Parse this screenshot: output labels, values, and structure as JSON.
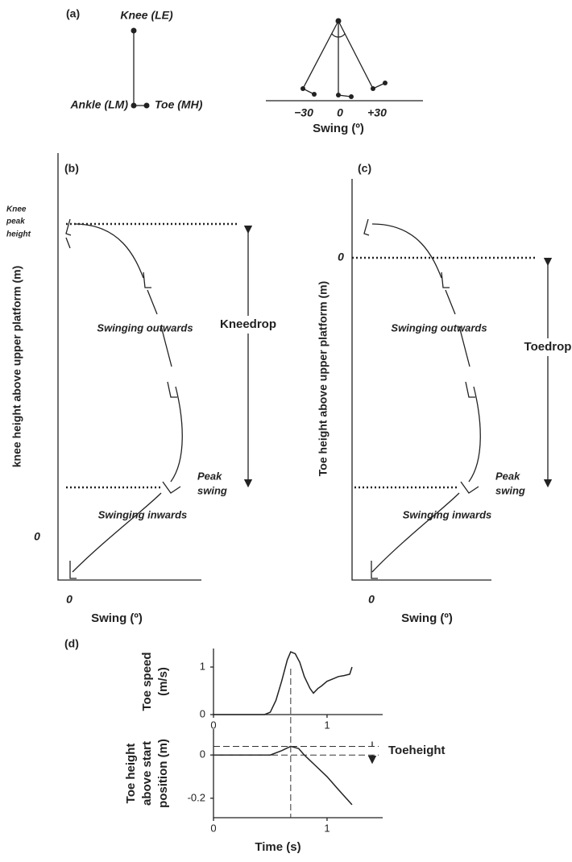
{
  "panel_a": {
    "label": "(a)",
    "knee": "Knee (LE)",
    "ankle": "Ankle (LM)",
    "toe": "Toe (MH)",
    "swing_ticks": [
      "−30",
      "0",
      "+30"
    ],
    "swing_label": "Swing (º)"
  },
  "panel_b": {
    "label": "(b)",
    "ylabel": "knee height above upper platform (m)",
    "yzero": "0",
    "xzero": "0",
    "xlabel": "Swing (º)",
    "peak_height": [
      "Knee",
      "peak",
      "height"
    ],
    "outwards": "Swinging outwards",
    "inwards": "Swinging inwards",
    "peak_swing": [
      "Peak",
      "swing"
    ],
    "drop": "Kneedrop"
  },
  "panel_c": {
    "label": "(c)",
    "ylabel": "Toe height above upper platform (m)",
    "yzero": "0",
    "xzero": "0",
    "xlabel": "Swing (º)",
    "outwards": "Swinging outwards",
    "inwards": "Swinging inwards",
    "peak_swing": [
      "Peak",
      "swing"
    ],
    "drop": "Toedrop"
  },
  "panel_d": {
    "label": "(d)",
    "annotation": "Toeheight"
  },
  "chart_data": [
    {
      "type": "line",
      "ylabel": [
        "Toe speed",
        "(m/s)"
      ],
      "color": "#222222",
      "x": [
        0,
        0.2,
        0.45,
        0.5,
        0.55,
        0.6,
        0.65,
        0.68,
        0.72,
        0.76,
        0.8,
        0.85,
        0.88,
        0.92,
        0.95,
        1.0,
        1.05,
        1.1,
        1.15,
        1.2,
        1.22
      ],
      "values": [
        0,
        0,
        0,
        0.05,
        0.3,
        0.7,
        1.15,
        1.32,
        1.28,
        1.1,
        0.8,
        0.55,
        0.45,
        0.55,
        0.6,
        0.7,
        0.75,
        0.8,
        0.82,
        0.85,
        1.0
      ],
      "xlim": [
        0,
        1.49
      ],
      "ylim": [
        0,
        1.39
      ],
      "xticks": [
        0,
        1
      ],
      "yticks": [
        0,
        1
      ]
    },
    {
      "type": "line",
      "ylabel": [
        "Toe height",
        "above start",
        "position (m)"
      ],
      "xlabel": "Time (s)",
      "color": "#222222",
      "x": [
        0,
        0.5,
        0.6,
        0.68,
        0.75,
        0.8,
        0.9,
        1.0,
        1.1,
        1.22
      ],
      "values": [
        0,
        0,
        0.02,
        0.04,
        0.03,
        0,
        -0.05,
        -0.1,
        -0.16,
        -0.23
      ],
      "xlim": [
        0,
        1.49
      ],
      "ylim": [
        -0.29,
        0.12
      ],
      "xticks": [
        0,
        1
      ],
      "yticks": [
        0,
        -0.2
      ]
    }
  ]
}
